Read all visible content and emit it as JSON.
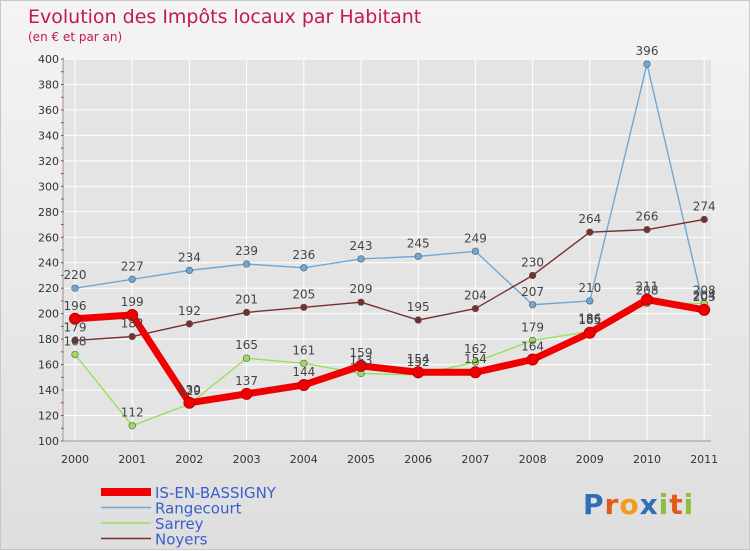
{
  "header": {
    "title": "Evolution des Impôts locaux par Habitant",
    "subtitle": "(en € et par an)"
  },
  "logo": {
    "text": "Proxiti"
  },
  "chart_data": {
    "type": "line",
    "title": "Evolution des Impôts locaux par Habitant",
    "subtitle": "(en € et par an)",
    "xlabel": "",
    "ylabel": "",
    "categories": [
      "2000",
      "2001",
      "2002",
      "2003",
      "2004",
      "2005",
      "2006",
      "2007",
      "2008",
      "2009",
      "2010",
      "2011"
    ],
    "ylim": [
      100,
      400
    ],
    "yticks": [
      100,
      120,
      140,
      160,
      180,
      200,
      220,
      240,
      260,
      280,
      300,
      320,
      340,
      360,
      380,
      400
    ],
    "legend_position": "bottom-left",
    "series": [
      {
        "name": "IS-EN-BASSIGNY",
        "color": "#f00000",
        "line_width": 7,
        "values": [
          196,
          199,
          130,
          137,
          144,
          159,
          154,
          154,
          164,
          185,
          211,
          203
        ],
        "labels": [
          "196",
          "199",
          "130",
          "137",
          "144",
          "159",
          "154",
          "154",
          "164",
          "185",
          "211",
          "203"
        ]
      },
      {
        "name": "Rangecourt",
        "color": "#6fa8d6",
        "line_width": 1.4,
        "values": [
          220,
          227,
          234,
          239,
          236,
          243,
          245,
          249,
          207,
          210,
          396,
          204
        ],
        "labels": [
          "220",
          "227",
          "234",
          "239",
          "236",
          "243",
          "245",
          "249",
          "207",
          "210",
          "396",
          "204"
        ]
      },
      {
        "name": "Sarrey",
        "color": "#98e05b",
        "line_width": 1.4,
        "values": [
          168,
          112,
          129,
          165,
          161,
          153,
          152,
          162,
          179,
          186,
          208,
          208
        ],
        "labels": [
          "168",
          "112",
          "129",
          "165",
          "161",
          "153",
          "152",
          "162",
          "179",
          "186",
          "208",
          "208"
        ]
      },
      {
        "name": "Noyers",
        "color": "#7a2f2f",
        "line_width": 1.4,
        "values": [
          179,
          182,
          192,
          201,
          205,
          209,
          195,
          204,
          230,
          264,
          266,
          274
        ],
        "labels": [
          "179",
          "182",
          "192",
          "201",
          "205",
          "209",
          "195",
          "204",
          "230",
          "264",
          "266",
          "274"
        ]
      }
    ],
    "colors": {
      "title": "#c2185b",
      "legend_text": "#3a5fcd",
      "grid": "#ffffff"
    }
  }
}
